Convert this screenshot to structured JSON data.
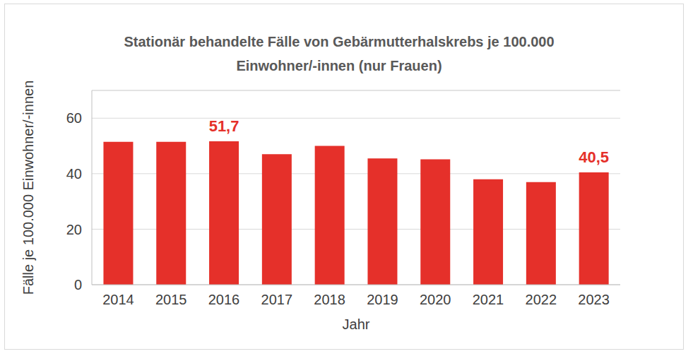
{
  "chart_data": {
    "type": "bar",
    "title": "Stationär behandelte Fälle von Gebärmutterhalskrebs je 100.000 Einwohner/-innen (nur Frauen)",
    "x_label": "Jahr",
    "y_label": "Fälle je 100.000 Einwohner/-innen",
    "categories": [
      "2014",
      "2015",
      "2016",
      "2017",
      "2018",
      "2019",
      "2020",
      "2021",
      "2022",
      "2023"
    ],
    "values": [
      51.5,
      51.5,
      51.7,
      47.0,
      50.0,
      45.5,
      45.2,
      38.0,
      37.0,
      40.5
    ],
    "value_labels": [
      null,
      null,
      "51,7",
      null,
      null,
      null,
      null,
      null,
      null,
      "40,5"
    ],
    "data_labels": true,
    "color": "#e5302a",
    "ylim": [
      0,
      70
    ],
    "yticks": [
      0,
      20,
      40,
      60
    ],
    "grid": true
  }
}
